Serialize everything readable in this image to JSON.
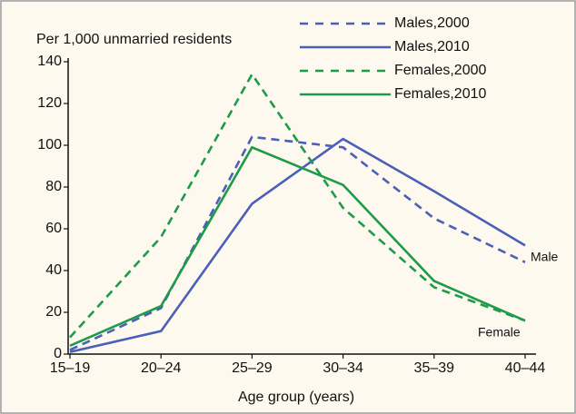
{
  "chart_data": {
    "type": "line",
    "y_label": "Per 1,000 unmarried residents",
    "x_label": "Age group (years)",
    "categories": [
      "15–19",
      "20–24",
      "25–29",
      "30–34",
      "35–39",
      "40–44"
    ],
    "series": [
      {
        "name": "Males,2000",
        "color": "#4a5fb8",
        "dashed": true,
        "values": [
          2,
          22,
          104,
          99,
          65,
          44
        ]
      },
      {
        "name": "Males,2010",
        "color": "#4a5fb8",
        "dashed": false,
        "values": [
          1,
          11,
          72,
          103,
          78,
          52
        ]
      },
      {
        "name": "Females,2000",
        "color": "#1e9a4b",
        "dashed": true,
        "values": [
          8,
          56,
          134,
          70,
          32,
          16
        ]
      },
      {
        "name": "Females,2010",
        "color": "#1e9a4b",
        "dashed": false,
        "values": [
          4,
          23,
          99,
          81,
          35,
          16
        ]
      }
    ],
    "annotations": [
      "Male",
      "Female"
    ],
    "ylim": [
      0,
      140
    ],
    "yticks": [
      0,
      20,
      40,
      60,
      80,
      100,
      120,
      140
    ],
    "legend": "top-right"
  }
}
